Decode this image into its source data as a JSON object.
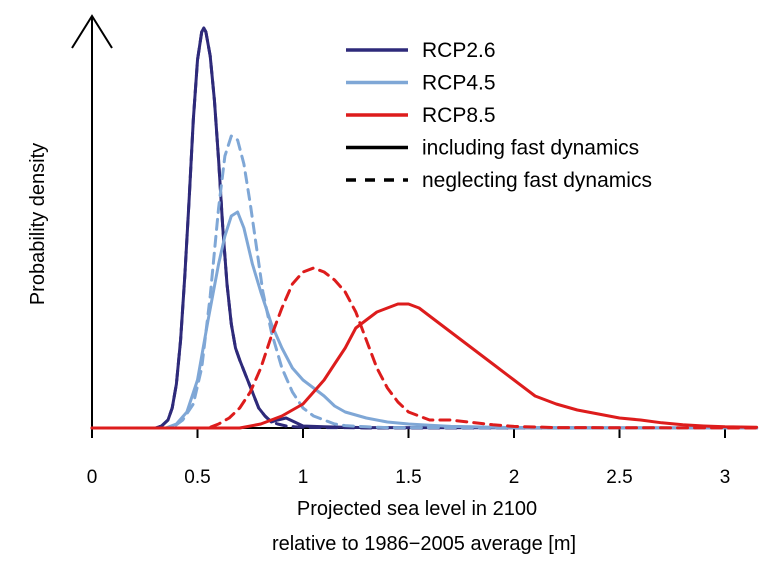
{
  "chart_data": {
    "type": "line",
    "xlabel_lines": [
      "Projected sea level in 2100",
      "relative to 1986−2005 average [m]"
    ],
    "ylabel": "Probability density",
    "xlim": [
      0,
      3.15
    ],
    "ylim": [
      0,
      1
    ],
    "x_ticks": [
      0,
      0.5,
      1,
      1.5,
      2,
      2.5,
      3
    ],
    "x_tick_labels": [
      "0",
      "0.5",
      "1",
      "1.5",
      "2",
      "2.5",
      "3"
    ],
    "y_ticks_shown": false,
    "grid": false,
    "legend_position": "top-right",
    "series": [
      {
        "name": "RCP2.6",
        "variant": "including fast dynamics",
        "color": "#2e2a7a",
        "style": "solid",
        "x": [
          0,
          0.3,
          0.33,
          0.36,
          0.38,
          0.4,
          0.42,
          0.44,
          0.46,
          0.48,
          0.5,
          0.52,
          0.53,
          0.54,
          0.56,
          0.58,
          0.6,
          0.62,
          0.64,
          0.66,
          0.68,
          0.7,
          0.73,
          0.76,
          0.79,
          0.82,
          0.85,
          0.88,
          0.92,
          0.96,
          1.0,
          1.1,
          1.2,
          1.3,
          3.15
        ],
        "y": [
          0,
          0,
          0.005,
          0.02,
          0.05,
          0.11,
          0.22,
          0.38,
          0.57,
          0.77,
          0.92,
          0.99,
          1.0,
          0.99,
          0.93,
          0.82,
          0.67,
          0.5,
          0.36,
          0.26,
          0.2,
          0.17,
          0.13,
          0.09,
          0.05,
          0.03,
          0.015,
          0.02,
          0.025,
          0.015,
          0.005,
          0.003,
          0.002,
          0.001,
          0
        ]
      },
      {
        "name": "RCP2.6",
        "variant": "neglecting fast dynamics",
        "color": "#2e2a7a",
        "style": "dashed",
        "x": [
          0,
          0.3,
          0.33,
          0.36,
          0.38,
          0.4,
          0.42,
          0.44,
          0.46,
          0.48,
          0.5,
          0.52,
          0.53,
          0.54,
          0.56,
          0.58,
          0.6,
          0.62,
          0.64,
          0.66,
          0.68,
          0.7,
          0.73,
          0.76,
          0.79,
          0.82,
          0.85,
          0.88,
          0.92,
          0.96,
          1.0,
          1.1,
          1.2,
          1.3,
          3.15
        ],
        "y": [
          0,
          0,
          0.005,
          0.02,
          0.05,
          0.11,
          0.22,
          0.38,
          0.57,
          0.77,
          0.92,
          0.99,
          1.0,
          0.99,
          0.93,
          0.82,
          0.67,
          0.5,
          0.36,
          0.26,
          0.2,
          0.17,
          0.13,
          0.09,
          0.05,
          0.03,
          0.015,
          0.01,
          0.005,
          0.003,
          0.002,
          0.001,
          0.001,
          0,
          0
        ]
      },
      {
        "name": "RCP4.5",
        "variant": "including fast dynamics",
        "color": "#7fa7d6",
        "style": "solid",
        "x": [
          0,
          0.35,
          0.4,
          0.45,
          0.5,
          0.55,
          0.6,
          0.63,
          0.66,
          0.69,
          0.72,
          0.76,
          0.8,
          0.85,
          0.9,
          0.95,
          1.0,
          1.05,
          1.1,
          1.15,
          1.2,
          1.3,
          1.4,
          1.5,
          1.6,
          1.7,
          1.8,
          1.9,
          2.0,
          2.2,
          2.4,
          3.15
        ],
        "y": [
          0,
          0,
          0.01,
          0.04,
          0.12,
          0.27,
          0.41,
          0.48,
          0.53,
          0.54,
          0.5,
          0.41,
          0.34,
          0.26,
          0.2,
          0.15,
          0.12,
          0.1,
          0.08,
          0.055,
          0.04,
          0.025,
          0.015,
          0.01,
          0.007,
          0.004,
          0.003,
          0.002,
          0.001,
          0.0005,
          0.0003,
          0
        ]
      },
      {
        "name": "RCP4.5",
        "variant": "neglecting fast dynamics",
        "color": "#7fa7d6",
        "style": "dashed",
        "x": [
          0,
          0.38,
          0.43,
          0.48,
          0.52,
          0.56,
          0.6,
          0.63,
          0.66,
          0.69,
          0.72,
          0.75,
          0.78,
          0.81,
          0.85,
          0.9,
          0.95,
          1.0,
          1.05,
          1.1,
          1.15,
          1.2,
          1.3,
          1.4,
          3.15
        ],
        "y": [
          0,
          0,
          0.02,
          0.06,
          0.15,
          0.33,
          0.55,
          0.68,
          0.73,
          0.72,
          0.66,
          0.56,
          0.45,
          0.34,
          0.24,
          0.15,
          0.09,
          0.05,
          0.03,
          0.02,
          0.01,
          0.006,
          0.003,
          0.001,
          0
        ]
      },
      {
        "name": "RCP8.5",
        "variant": "including fast dynamics",
        "color": "#dd1c1c",
        "style": "solid",
        "x": [
          0,
          0.7,
          0.8,
          0.9,
          1.0,
          1.05,
          1.1,
          1.15,
          1.2,
          1.25,
          1.3,
          1.35,
          1.4,
          1.45,
          1.5,
          1.55,
          1.6,
          1.7,
          1.8,
          1.9,
          2.0,
          2.1,
          2.2,
          2.3,
          2.4,
          2.5,
          2.6,
          2.7,
          2.8,
          2.9,
          3.0,
          3.15
        ],
        "y": [
          0,
          0,
          0.01,
          0.03,
          0.06,
          0.09,
          0.12,
          0.16,
          0.2,
          0.25,
          0.27,
          0.29,
          0.3,
          0.31,
          0.31,
          0.3,
          0.28,
          0.24,
          0.2,
          0.16,
          0.12,
          0.08,
          0.06,
          0.045,
          0.035,
          0.025,
          0.02,
          0.013,
          0.008,
          0.005,
          0.003,
          0.002
        ]
      },
      {
        "name": "RCP8.5",
        "variant": "neglecting fast dynamics",
        "color": "#dd1c1c",
        "style": "dashed",
        "x": [
          0,
          0.55,
          0.6,
          0.65,
          0.7,
          0.75,
          0.8,
          0.85,
          0.9,
          0.95,
          1.0,
          1.05,
          1.1,
          1.15,
          1.2,
          1.25,
          1.3,
          1.35,
          1.4,
          1.45,
          1.5,
          1.6,
          1.7,
          1.8,
          1.9,
          2.0,
          2.2,
          3.15
        ],
        "y": [
          0,
          0,
          0.01,
          0.025,
          0.05,
          0.09,
          0.15,
          0.23,
          0.3,
          0.36,
          0.39,
          0.4,
          0.39,
          0.37,
          0.34,
          0.29,
          0.22,
          0.15,
          0.1,
          0.065,
          0.04,
          0.02,
          0.02,
          0.014,
          0.008,
          0.004,
          0.001,
          0
        ]
      }
    ],
    "legend": [
      {
        "label": "RCP2.6",
        "color": "#2e2a7a",
        "style": "solid"
      },
      {
        "label": "RCP4.5",
        "color": "#7fa7d6",
        "style": "solid"
      },
      {
        "label": "RCP8.5",
        "color": "#dd1c1c",
        "style": "solid"
      },
      {
        "label": "including fast dynamics",
        "color": "#000000",
        "style": "solid"
      },
      {
        "label": "neglecting fast dynamics",
        "color": "#000000",
        "style": "dashed"
      }
    ]
  }
}
